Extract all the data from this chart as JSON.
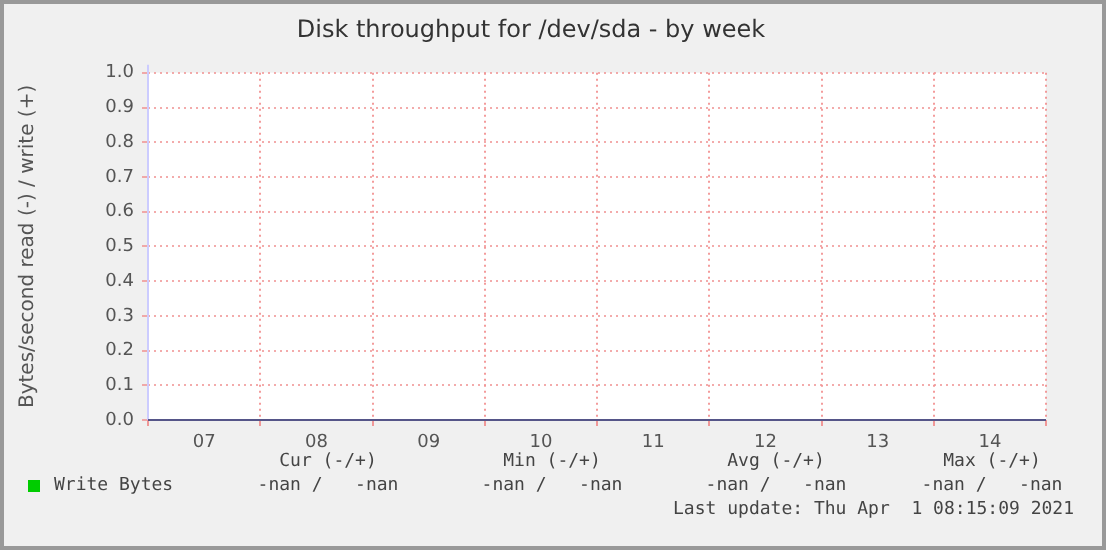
{
  "chart_data": {
    "type": "line",
    "title": "Disk throughput for /dev/sda - by week",
    "ylabel": "Bytes/second read (-) / write (+)",
    "categories": [
      "07",
      "08",
      "09",
      "10",
      "11",
      "12",
      "13",
      "14"
    ],
    "series": [
      {
        "name": "Write Bytes",
        "color": "#00cc00",
        "values": [
          null,
          null,
          null,
          null,
          null,
          null,
          null,
          null
        ]
      }
    ],
    "ylim": [
      0,
      1
    ],
    "yticks": [
      {
        "value": 0,
        "label": "0.0"
      },
      {
        "value": 0.1,
        "label": "0.1"
      },
      {
        "value": 0.2,
        "label": "0.2"
      },
      {
        "value": 0.3,
        "label": "0.3"
      },
      {
        "value": 0.4,
        "label": "0.4"
      },
      {
        "value": 0.5,
        "label": "0.5"
      },
      {
        "value": 0.6,
        "label": "0.6"
      },
      {
        "value": 0.7,
        "label": "0.7"
      },
      {
        "value": 0.8,
        "label": "0.8"
      },
      {
        "value": 0.9,
        "label": "0.9"
      },
      {
        "value": 1,
        "label": "1.0"
      }
    ],
    "grid": true,
    "legend": "bottom left",
    "annotations": [
      "Cur (-/+)",
      "Min (-/+)",
      "Avg (-/+)",
      "Max (-/+)",
      "-nan /   -nan",
      "-nan /   -nan",
      "-nan /   -nan",
      "-nan /   -nan",
      "Last update: Thu Apr  1 08:15:09 2021"
    ]
  }
}
